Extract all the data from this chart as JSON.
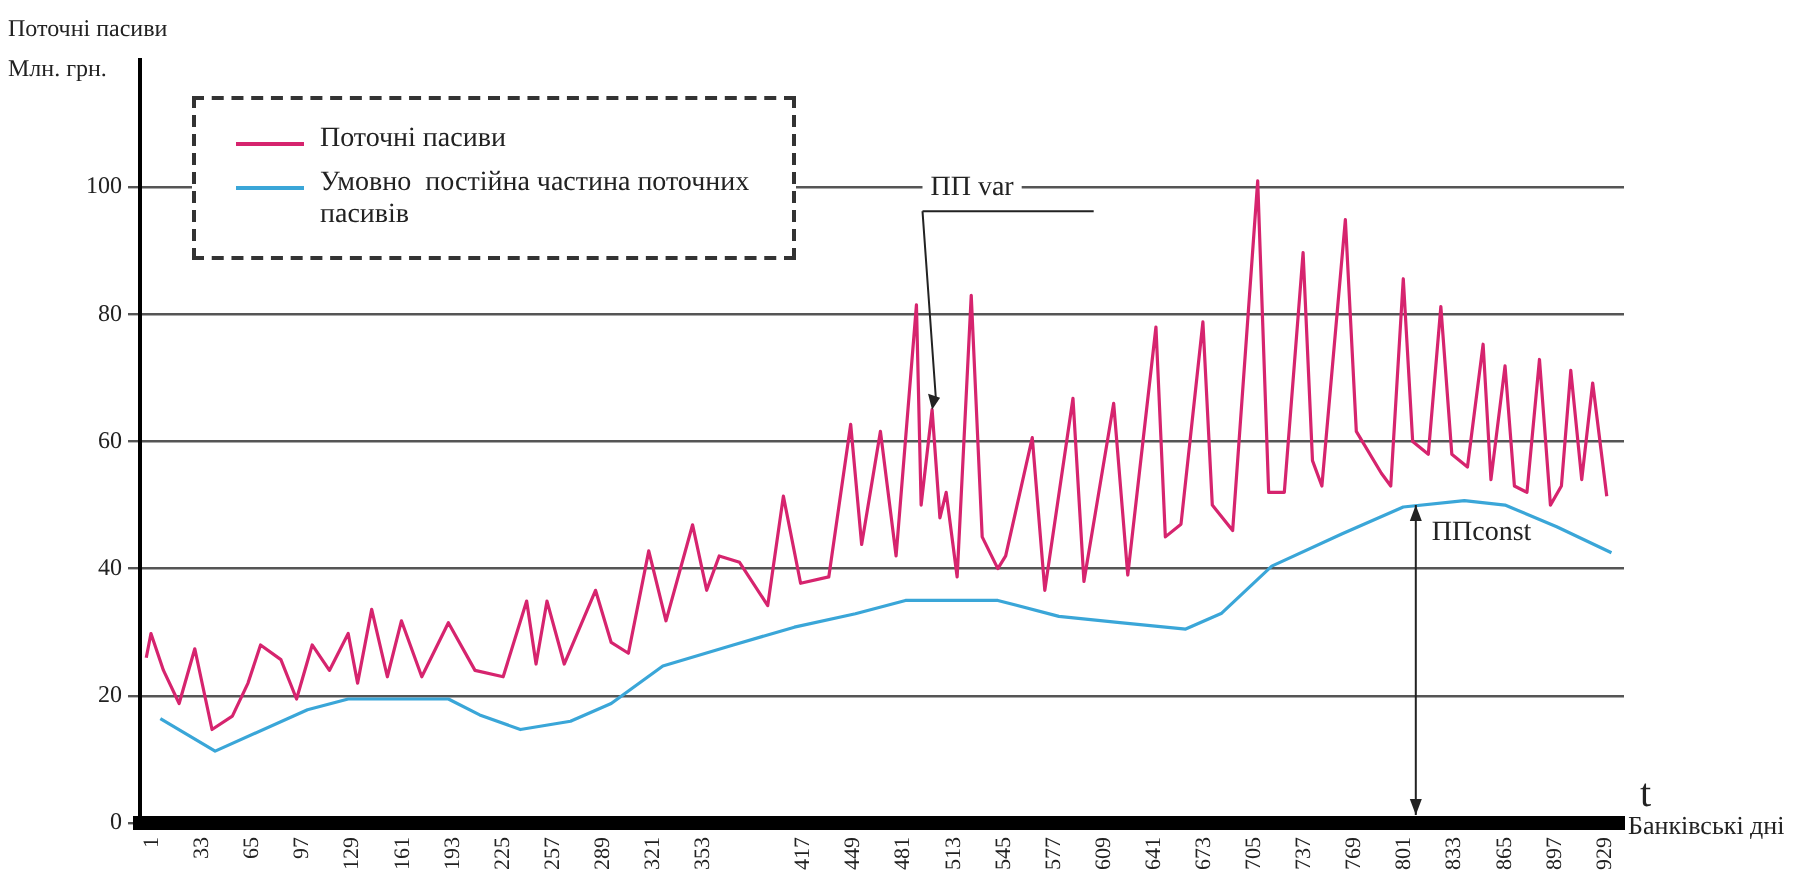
{
  "chart_data": {
    "type": "line",
    "ylabel": "Поточні пасиви Млн. грн.",
    "xlabel": "Банківські дні",
    "xlim": [
      -3,
      945
    ],
    "xticks": [
      1,
      33,
      65,
      97,
      129,
      161,
      193,
      225,
      257,
      289,
      321,
      353,
      417,
      449,
      481,
      513,
      545,
      577,
      609,
      641,
      673,
      705,
      737,
      769,
      801,
      833,
      865,
      897,
      929
    ],
    "ylim": [
      0,
      120
    ],
    "yticks": [
      0,
      20,
      40,
      60,
      80,
      100
    ],
    "grid": "y",
    "legend": "top left",
    "marker": "none",
    "line_style": "solid",
    "series": [
      {
        "name": "Поточні пасиви",
        "color": "#d6246e",
        "x": [
          1,
          4,
          12,
          22,
          32,
          43,
          56,
          66,
          74,
          87,
          97,
          107,
          118,
          130,
          136,
          145,
          155,
          164,
          177,
          194,
          211,
          229,
          244,
          250,
          257,
          268,
          288,
          298,
          309,
          322,
          333,
          350,
          359,
          367,
          380,
          398,
          408,
          419,
          437,
          451,
          458,
          470,
          480,
          493,
          496,
          503,
          508,
          512,
          519,
          528,
          535,
          545,
          550,
          567,
          575,
          593,
          600,
          619,
          628,
          646,
          652,
          662,
          676,
          682,
          695,
          711,
          718,
          728,
          740,
          746,
          752,
          767,
          774,
          790,
          796,
          804,
          810,
          820,
          828,
          835,
          845,
          855,
          860,
          869,
          875,
          883,
          891,
          898,
          905,
          911,
          918,
          925,
          934
        ],
        "values": [
          26,
          29.8,
          24,
          18.8,
          27.4,
          14.7,
          16.8,
          22,
          28,
          25.7,
          19.5,
          28,
          24,
          29.8,
          22,
          33.6,
          23,
          31.8,
          23,
          31.5,
          24,
          23,
          34.9,
          25,
          34.9,
          25,
          36.6,
          28.4,
          26.7,
          42.8,
          31.8,
          46.9,
          36.6,
          42,
          41,
          34.2,
          51.4,
          37.7,
          38.7,
          62.7,
          43.8,
          61.6,
          42,
          81.5,
          50,
          65,
          48,
          52,
          38.7,
          83,
          45,
          40,
          42,
          60.6,
          36.6,
          66.8,
          38,
          66,
          39,
          78,
          45,
          47,
          78.8,
          50,
          46,
          101,
          52,
          52,
          89.7,
          57,
          53,
          94.9,
          61.6,
          55,
          53,
          85.6,
          60,
          58,
          81.2,
          58,
          56,
          75.3,
          54,
          71.9,
          53,
          52,
          72.9,
          50,
          53,
          71.2,
          54,
          69.2,
          51.4
        ]
      },
      {
        "name": "Умовно  постійна частина поточних пасивів",
        "color": "#3aa6d8",
        "x": [
          10,
          45,
          104,
          130,
          194,
          214,
          240,
          272,
          298,
          331,
          376,
          415,
          454,
          486,
          545,
          584,
          623,
          665,
          688,
          720,
          765,
          804,
          843,
          869,
          902,
          937
        ],
        "values": [
          16.4,
          11.3,
          17.8,
          19.5,
          19.5,
          17,
          14.7,
          16,
          18.8,
          24.7,
          28,
          30.8,
          32.9,
          35,
          35,
          32.5,
          31.5,
          30.5,
          33,
          40.4,
          45.5,
          49.7,
          50.7,
          50,
          46.6,
          42.5
        ]
      }
    ],
    "annotations": [
      {
        "text": "ПП var",
        "x": 503,
        "y": 65
      },
      {
        "text": "ППconst",
        "x": 812,
        "y": 50
      },
      "t"
    ]
  }
}
